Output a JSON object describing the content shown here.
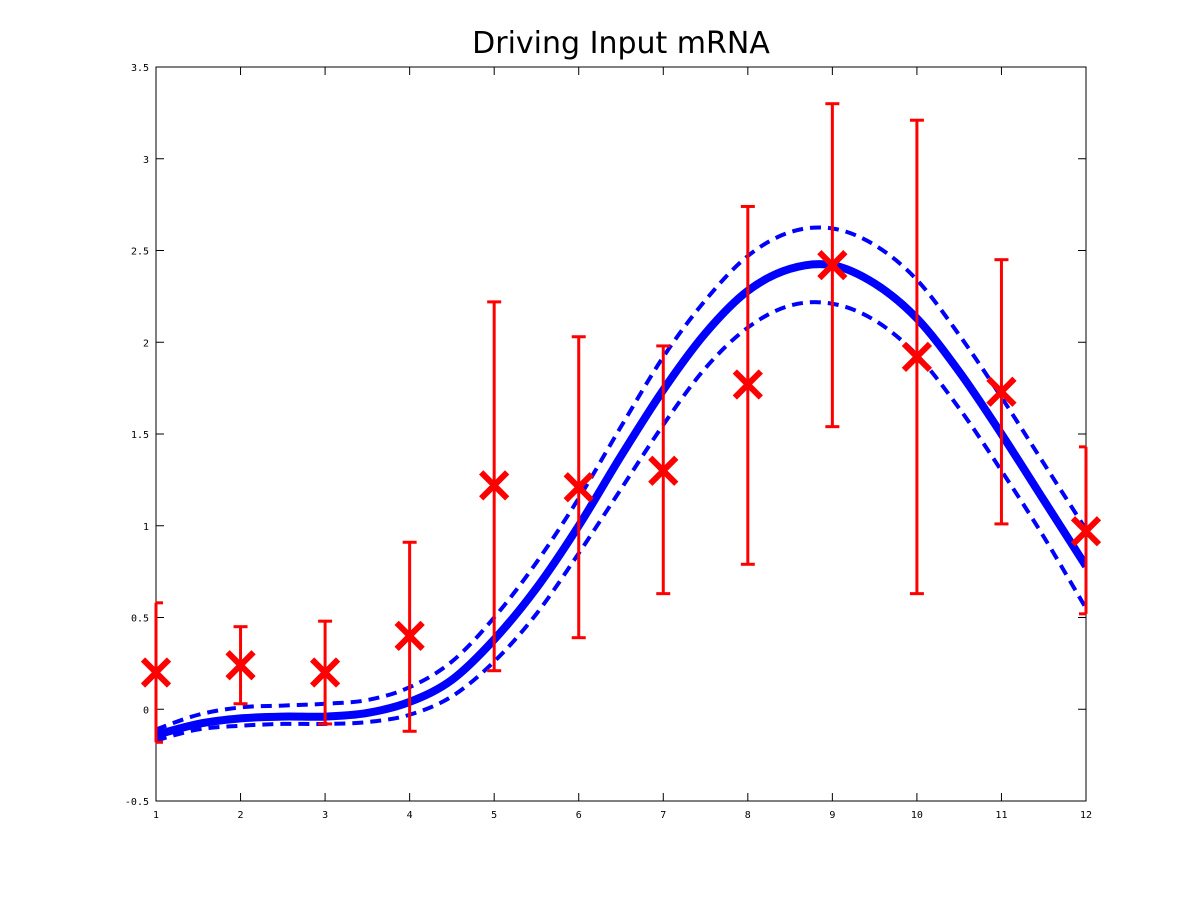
{
  "chart_data": {
    "type": "line",
    "title": "Driving Input mRNA",
    "xlabel": "",
    "ylabel": "",
    "xlim": [
      1,
      12
    ],
    "ylim": [
      -0.5,
      3.5
    ],
    "xticks": [
      1,
      2,
      3,
      4,
      5,
      6,
      7,
      8,
      9,
      10,
      11,
      12
    ],
    "xtick_labels": [
      "1",
      "2",
      "3",
      "4",
      "5",
      "6",
      "7",
      "8",
      "9",
      "10",
      "11",
      "12"
    ],
    "yticks": [
      -0.5,
      0,
      0.5,
      1,
      1.5,
      2,
      2.5,
      3,
      3.5
    ],
    "ytick_labels": [
      "-0.5",
      "0",
      "0.5",
      "1",
      "1.5",
      "2",
      "2.5",
      "3",
      "3.5"
    ],
    "grid": false,
    "legend": "none",
    "series": [
      {
        "kind": "line-mean",
        "color": "#0000ff",
        "x": [
          1,
          1.5,
          2,
          2.5,
          3,
          3.5,
          4,
          4.5,
          5,
          5.5,
          6,
          6.5,
          7,
          7.5,
          8,
          8.5,
          9,
          9.5,
          10,
          10.5,
          11,
          11.5,
          12
        ],
        "y": [
          -0.14,
          -0.08,
          -0.05,
          -0.04,
          -0.04,
          -0.02,
          0.04,
          0.16,
          0.38,
          0.66,
          1.0,
          1.38,
          1.74,
          2.05,
          2.28,
          2.4,
          2.42,
          2.32,
          2.13,
          1.84,
          1.5,
          1.14,
          0.78
        ]
      },
      {
        "kind": "line-upper",
        "color": "#0000ff",
        "x": [
          1,
          1.5,
          2,
          2.5,
          3,
          3.5,
          4,
          4.5,
          5,
          5.5,
          6,
          6.5,
          7,
          7.5,
          8,
          8.5,
          9,
          9.5,
          10,
          10.5,
          11,
          11.5,
          12
        ],
        "y": [
          -0.11,
          -0.03,
          0.01,
          0.02,
          0.03,
          0.05,
          0.12,
          0.26,
          0.5,
          0.8,
          1.15,
          1.54,
          1.92,
          2.23,
          2.47,
          2.6,
          2.62,
          2.53,
          2.34,
          2.04,
          1.7,
          1.34,
          0.98
        ]
      },
      {
        "kind": "line-lower",
        "color": "#0000ff",
        "x": [
          1,
          1.5,
          2,
          2.5,
          3,
          3.5,
          4,
          4.5,
          5,
          5.5,
          6,
          6.5,
          7,
          7.5,
          8,
          8.5,
          9,
          9.5,
          10,
          10.5,
          11,
          11.5,
          12
        ],
        "y": [
          -0.17,
          -0.11,
          -0.09,
          -0.08,
          -0.08,
          -0.07,
          -0.03,
          0.07,
          0.26,
          0.52,
          0.85,
          1.2,
          1.55,
          1.86,
          2.08,
          2.2,
          2.21,
          2.12,
          1.93,
          1.64,
          1.3,
          0.94,
          0.55
        ]
      },
      {
        "kind": "errorbar-points",
        "color": "#ff0000",
        "x": [
          1,
          2,
          3,
          4,
          5,
          6,
          7,
          8,
          9,
          10,
          11,
          12
        ],
        "y": [
          0.2,
          0.24,
          0.2,
          0.4,
          1.22,
          1.21,
          1.3,
          1.77,
          2.42,
          1.92,
          1.73,
          0.97
        ],
        "y_low": [
          -0.18,
          0.03,
          -0.08,
          -0.12,
          0.21,
          0.39,
          0.63,
          0.79,
          1.54,
          0.63,
          1.01,
          0.52
        ],
        "y_high": [
          0.58,
          0.45,
          0.48,
          0.91,
          2.22,
          2.03,
          1.98,
          2.74,
          3.3,
          3.21,
          2.45,
          1.43
        ]
      }
    ]
  }
}
